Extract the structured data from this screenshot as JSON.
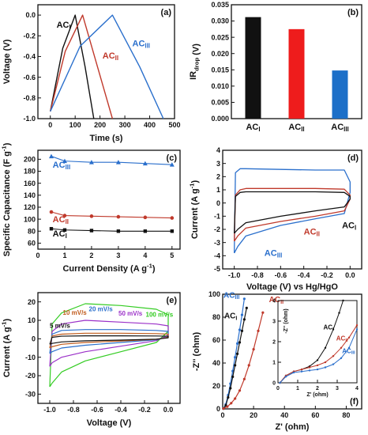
{
  "colors": {
    "black": "#111111",
    "red": "#c0392b",
    "blue": "#2a6fcc",
    "purple": "#9b30c8",
    "green": "#33cc22",
    "orange": "#c05a1a",
    "bar_red": "#ee1c1c",
    "bar_blue": "#1c6fc8"
  },
  "chart_data": [
    {
      "type": "line",
      "label": "(a)",
      "xlabel": "Time (s)",
      "ylabel": "Voltage (V)",
      "xlim": [
        -50,
        500
      ],
      "ylim": [
        -1.0,
        0.1
      ],
      "xticks": [
        0,
        100,
        200,
        300,
        400,
        500
      ],
      "yticks": [
        -1.0,
        -0.8,
        -0.6,
        -0.4,
        -0.2,
        0.0
      ],
      "tick_labels_x": [
        "0",
        "100",
        "200",
        "300",
        "400",
        "500"
      ],
      "tick_labels_y": [
        "-1.0",
        "-0.8",
        "-0.6",
        "-0.4",
        "-0.2",
        "0.0"
      ],
      "series": [
        {
          "name": "ACI",
          "color": "black",
          "x": [
            0,
            50,
            100,
            140,
            175
          ],
          "y": [
            -0.93,
            -0.32,
            0.0,
            -0.5,
            -1.0
          ]
        },
        {
          "name": "ACII",
          "color": "red",
          "x": [
            0,
            60,
            130,
            190,
            250
          ],
          "y": [
            -0.93,
            -0.35,
            0.0,
            -0.5,
            -1.0
          ]
        },
        {
          "name": "ACIII",
          "color": "blue",
          "x": [
            0,
            120,
            250,
            360,
            455
          ],
          "y": [
            -0.93,
            -0.3,
            0.0,
            -0.5,
            -1.0
          ]
        }
      ],
      "annotations": [
        {
          "text": "ACI",
          "color": "black",
          "x": 25,
          "y": -0.12
        },
        {
          "text": "ACII",
          "color": "red",
          "x": 210,
          "y": -0.42
        },
        {
          "text": "ACIII",
          "color": "blue",
          "x": 330,
          "y": -0.3
        }
      ]
    },
    {
      "type": "bar",
      "label": "(b)",
      "ylabel": "IRdrop (V)",
      "ylim": [
        0,
        0.035
      ],
      "yticks": [
        0.0,
        0.005,
        0.01,
        0.015,
        0.02,
        0.025,
        0.03,
        0.035
      ],
      "tick_labels_y": [
        "0.000",
        "0.005",
        "0.010",
        "0.015",
        "0.020",
        "0.025",
        "0.030",
        "0.035"
      ],
      "categories": [
        "ACI",
        "ACII",
        "ACIII"
      ],
      "values": [
        0.0312,
        0.0275,
        0.0148
      ],
      "bar_colors": [
        "black",
        "bar_red",
        "bar_blue"
      ]
    },
    {
      "type": "scatter",
      "label": "(c)",
      "xlabel": "Current Density (A g-1)",
      "ylabel": "Specific Capacitance (F g-1)",
      "xlim": [
        0,
        5.3
      ],
      "ylim": [
        50,
        215
      ],
      "xticks": [
        0,
        1,
        2,
        3,
        4,
        5
      ],
      "yticks": [
        60,
        80,
        100,
        120,
        140,
        160,
        180,
        200
      ],
      "tick_labels_x": [
        "0",
        "1",
        "2",
        "3",
        "4",
        "5"
      ],
      "tick_labels_y": [
        "60",
        "80",
        "100",
        "120",
        "140",
        "160",
        "180",
        "200"
      ],
      "series": [
        {
          "name": "ACIII",
          "color": "blue",
          "x": [
            0.5,
            1,
            2,
            3,
            4,
            5
          ],
          "y": [
            205,
            197,
            195,
            195,
            193,
            191
          ]
        },
        {
          "name": "ACII",
          "color": "red",
          "x": [
            0.5,
            1,
            2,
            3,
            4,
            5
          ],
          "y": [
            112,
            106,
            105,
            104,
            103,
            102
          ]
        },
        {
          "name": "ACI",
          "color": "black",
          "x": [
            0.5,
            1,
            2,
            3,
            4,
            5
          ],
          "y": [
            84,
            82,
            81,
            80,
            80,
            80
          ]
        }
      ],
      "annotations": [
        {
          "text": "ACIII",
          "color": "blue",
          "x": 0.55,
          "y": 186
        },
        {
          "text": "ACII",
          "color": "red",
          "x": 0.55,
          "y": 95
        },
        {
          "text": "ACI",
          "color": "black",
          "x": 0.55,
          "y": 71
        }
      ]
    },
    {
      "type": "line",
      "label": "(d)",
      "xlabel": "Voltage (V) vs Hg/HgO",
      "ylabel": "Current (A g-1)",
      "xlim": [
        -1.1,
        0.1
      ],
      "ylim": [
        -5,
        4
      ],
      "xticks": [
        -1.0,
        -0.8,
        -0.6,
        -0.4,
        -0.2,
        0.0
      ],
      "yticks": [
        -5,
        -4,
        -3,
        -2,
        -1,
        0,
        1,
        2,
        3,
        4
      ],
      "tick_labels_x": [
        "-1.0",
        "-0.8",
        "-0.6",
        "-0.4",
        "-0.2",
        "0.0"
      ],
      "tick_labels_y": [
        "-5",
        "-4",
        "-3",
        "-2",
        "-1",
        "0",
        "1",
        "2",
        "3",
        "4"
      ],
      "series": [
        {
          "name": "ACIII",
          "color": "blue",
          "x": [
            -1.0,
            -0.99,
            -0.95,
            -0.9,
            -0.6,
            -0.3,
            -0.05,
            0.0,
            0.0,
            -0.05,
            -0.3,
            -0.6,
            -0.9,
            -0.97,
            -1.0
          ],
          "y": [
            -3.8,
            2.3,
            2.6,
            2.6,
            2.55,
            2.5,
            2.5,
            1.6,
            0.8,
            -0.8,
            -1.2,
            -1.7,
            -2.5,
            -3.3,
            -3.8
          ]
        },
        {
          "name": "ACII",
          "color": "red",
          "x": [
            -1.0,
            -0.99,
            -0.95,
            -0.9,
            -0.6,
            -0.3,
            -0.05,
            0.0,
            0.0,
            -0.05,
            -0.3,
            -0.6,
            -0.9,
            -0.97,
            -1.0
          ],
          "y": [
            -2.9,
            0.6,
            1.0,
            1.1,
            1.1,
            1.1,
            1.05,
            0.6,
            0.3,
            -0.6,
            -1.0,
            -1.4,
            -1.9,
            -2.5,
            -2.9
          ]
        },
        {
          "name": "ACI",
          "color": "black",
          "x": [
            -1.0,
            -0.99,
            -0.95,
            -0.9,
            -0.6,
            -0.3,
            -0.05,
            0.0,
            0.0,
            -0.05,
            -0.3,
            -0.6,
            -0.9,
            -0.97,
            -1.0
          ],
          "y": [
            -2.3,
            0.5,
            0.8,
            0.85,
            0.85,
            0.85,
            0.8,
            0.5,
            0.3,
            -0.3,
            -0.6,
            -1.0,
            -1.5,
            -2.0,
            -2.3
          ]
        }
      ],
      "annotations": [
        {
          "text": "ACI",
          "color": "black",
          "x": -0.07,
          "y": -1.9
        },
        {
          "text": "ACII",
          "color": "red",
          "x": -0.4,
          "y": -2.4
        },
        {
          "text": "ACIII",
          "color": "blue",
          "x": -0.74,
          "y": -4.0
        }
      ]
    },
    {
      "type": "line",
      "label": "(e)",
      "xlabel": "Voltage (V)",
      "ylabel": "Current (A g-1)",
      "xlim": [
        -1.1,
        0.1
      ],
      "ylim": [
        -35,
        25
      ],
      "xticks": [
        -1.0,
        -0.8,
        -0.6,
        -0.4,
        -0.2,
        0.0
      ],
      "yticks": [
        -30,
        -20,
        -10,
        0,
        10,
        20
      ],
      "tick_labels_x": [
        "-1.0",
        "-0.8",
        "-0.6",
        "-0.4",
        "-0.2",
        "0.0"
      ],
      "tick_labels_y": [
        "-30",
        "-20",
        "-10",
        "0",
        "10",
        "20"
      ],
      "series": [
        {
          "name": "100 mV/s",
          "color": "green",
          "x": [
            -1.0,
            -0.98,
            -0.9,
            -0.7,
            -0.4,
            -0.1,
            0.0,
            0.0,
            -0.1,
            -0.4,
            -0.7,
            -0.9,
            -0.98,
            -1.0
          ],
          "y": [
            -26,
            8,
            14,
            19,
            18,
            16,
            13,
            4,
            -2,
            -7,
            -12,
            -18,
            -24,
            -26
          ]
        },
        {
          "name": "50 mV/s",
          "color": "purple",
          "x": [
            -1.0,
            -0.98,
            -0.9,
            -0.7,
            -0.4,
            -0.1,
            0.0,
            0.0,
            -0.1,
            -0.4,
            -0.7,
            -0.9,
            -0.98,
            -1.0
          ],
          "y": [
            -15,
            4,
            8,
            10,
            9,
            8,
            7,
            2,
            -1,
            -4,
            -7,
            -10,
            -13,
            -15
          ]
        },
        {
          "name": "20 mV/s",
          "color": "blue",
          "x": [
            -1.0,
            -0.98,
            -0.9,
            -0.7,
            -0.4,
            -0.1,
            0.0,
            0.0,
            -0.1,
            -0.4,
            -0.7,
            -0.9,
            -0.98,
            -1.0
          ],
          "y": [
            -8,
            2.5,
            4.5,
            5,
            5,
            4.5,
            4,
            1,
            -0.5,
            -2,
            -3.5,
            -5,
            -7,
            -8
          ]
        },
        {
          "name": "10 mV/s",
          "color": "orange",
          "x": [
            -1.0,
            -0.98,
            -0.9,
            -0.7,
            -0.4,
            -0.1,
            0.0,
            0.0,
            -0.1,
            -0.4,
            -0.7,
            -0.9,
            -0.98,
            -1.0
          ],
          "y": [
            -5,
            1.5,
            2.5,
            3,
            3,
            2.8,
            2.5,
            0.8,
            -0.3,
            -1.2,
            -2,
            -3,
            -4.3,
            -5
          ]
        },
        {
          "name": "5 mV/s",
          "color": "black",
          "x": [
            -1.0,
            -0.98,
            -0.9,
            -0.7,
            -0.4,
            -0.1,
            0.0,
            0.0,
            -0.1,
            -0.4,
            -0.7,
            -0.9,
            -0.98,
            -1.0
          ],
          "y": [
            -3,
            0.8,
            1.4,
            1.6,
            1.6,
            1.5,
            1.4,
            0.5,
            -0.2,
            -0.7,
            -1.1,
            -1.7,
            -2.5,
            -3
          ]
        }
      ],
      "annotations": [
        {
          "text": "5 mV/s",
          "color": "black",
          "x": -1.0,
          "y": 6
        },
        {
          "text": "10 mV/s",
          "color": "orange",
          "x": -0.89,
          "y": 13
        },
        {
          "text": "20 mV/s",
          "color": "blue",
          "x": -0.67,
          "y": 15
        },
        {
          "text": "50 mV/s",
          "color": "purple",
          "x": -0.42,
          "y": 12.5
        },
        {
          "text": "100 mV/s",
          "color": "green",
          "x": -0.19,
          "y": 12
        }
      ]
    },
    {
      "type": "scatter",
      "label": "(f)",
      "xlabel": "Z' (ohm)",
      "ylabel": "-Z'' (ohm)",
      "xlim": [
        0,
        90
      ],
      "ylim": [
        0,
        100
      ],
      "xticks": [
        0,
        20,
        40,
        60,
        80
      ],
      "yticks": [
        0,
        20,
        40,
        60,
        80,
        100
      ],
      "tick_labels_x": [
        "0",
        "20",
        "40",
        "60",
        "80"
      ],
      "tick_labels_y": [
        "0",
        "20",
        "40",
        "60",
        "80",
        "100"
      ],
      "series": [
        {
          "name": "ACIII",
          "color": "blue",
          "x": [
            0.5,
            2,
            3.5,
            5,
            6.5,
            8,
            9.5,
            11,
            12.5,
            14
          ],
          "y": [
            0.3,
            4,
            12,
            22,
            33,
            45,
            57,
            69,
            82,
            96
          ]
        },
        {
          "name": "ACI",
          "color": "black",
          "x": [
            0.5,
            2,
            3.5,
            5,
            6.5,
            8,
            9.5,
            11,
            12.5,
            14,
            15.5
          ],
          "y": [
            0.3,
            3,
            10,
            18,
            28,
            38,
            48,
            58,
            68,
            78,
            88
          ]
        },
        {
          "name": "ACII",
          "color": "red",
          "x": [
            0.5,
            3,
            5.5,
            8,
            11,
            14,
            17,
            20,
            23,
            26
          ],
          "y": [
            0.3,
            2,
            5,
            9,
            16,
            26,
            38,
            52,
            68,
            84
          ]
        }
      ],
      "annotations": [
        {
          "text": "ACIII",
          "color": "blue",
          "x": 0.5,
          "y": 97
        },
        {
          "text": "ACI",
          "color": "black",
          "x": 1,
          "y": 79
        },
        {
          "text": "ACII",
          "color": "red",
          "x": 30,
          "y": 93
        }
      ],
      "inset": {
        "xlabel": "Z' (ohm)",
        "ylabel": "-Z'' (ohm)",
        "xlim": [
          0,
          4
        ],
        "ylim": [
          0,
          4
        ],
        "xticks": [
          0,
          1,
          2,
          3,
          4
        ],
        "yticks": [
          0,
          1,
          2,
          3,
          4
        ],
        "tick_labels_x": [
          "0",
          "1",
          "2",
          "3",
          "4"
        ],
        "tick_labels_y": [
          "0",
          "1",
          "2",
          "3",
          "4"
        ],
        "series": [
          {
            "name": "ACI",
            "color": "black",
            "x": [
              0.1,
              0.4,
              0.8,
              1.2,
              1.6,
              2.0,
              2.4,
              2.8,
              3.1,
              3.3
            ],
            "y": [
              0.0,
              0.35,
              0.55,
              0.65,
              0.8,
              1.1,
              1.7,
              2.6,
              3.4,
              4.0
            ]
          },
          {
            "name": "ACII",
            "color": "red",
            "x": [
              0.1,
              0.4,
              0.8,
              1.2,
              1.6,
              2.0,
              2.4,
              2.8,
              3.2,
              3.6,
              4.0
            ],
            "y": [
              0.0,
              0.35,
              0.55,
              0.65,
              0.75,
              0.85,
              1.0,
              1.3,
              1.7,
              2.2,
              2.8
            ]
          },
          {
            "name": "ACIII",
            "color": "blue",
            "x": [
              0.1,
              0.4,
              0.8,
              1.2,
              1.6,
              2.0,
              2.4,
              2.8,
              3.2,
              3.6,
              4.0
            ],
            "y": [
              0.0,
              0.3,
              0.5,
              0.55,
              0.6,
              0.65,
              0.75,
              0.9,
              1.2,
              1.7,
              2.6
            ]
          }
        ],
        "annotations": [
          {
            "text": "ACI",
            "color": "black",
            "x": 2.3,
            "y": 2.6
          },
          {
            "text": "ACII",
            "color": "red",
            "x": 2.95,
            "y": 2.05
          },
          {
            "text": "ACIII",
            "color": "blue",
            "x": 3.25,
            "y": 1.45
          }
        ]
      }
    }
  ]
}
